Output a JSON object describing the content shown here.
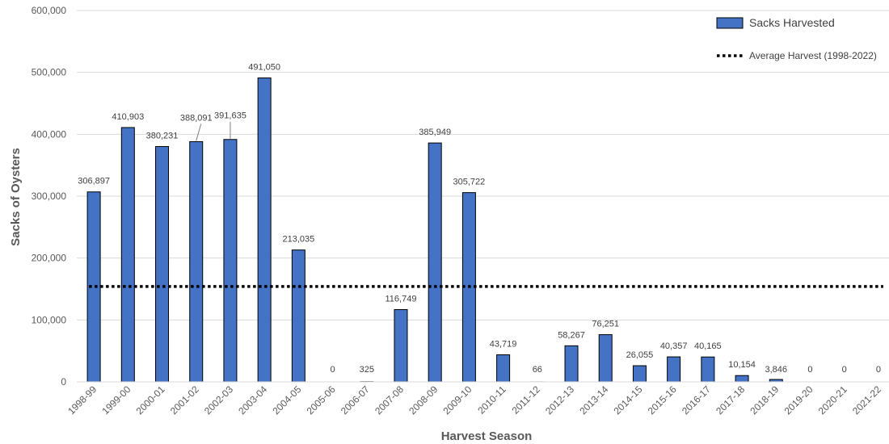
{
  "chart_data": {
    "type": "bar",
    "categories": [
      "1998-99",
      "1999-00",
      "2000-01",
      "2001-02",
      "2002-03",
      "2003-04",
      "2004-05",
      "2005-06",
      "2006-07",
      "2007-08",
      "2008-09",
      "2009-10",
      "2010-11",
      "2011-12",
      "2012-13",
      "2013-14",
      "2014-15",
      "2015-16",
      "2016-17",
      "2017-18",
      "2018-19",
      "2019-20",
      "2020-21",
      "2021-22"
    ],
    "series": [
      {
        "name": "Sacks Harvested",
        "values": [
          306897,
          410903,
          380231,
          388091,
          391635,
          491050,
          213035,
          0,
          325,
          116749,
          385949,
          305722,
          43719,
          66,
          58267,
          76251,
          26055,
          40357,
          40165,
          10154,
          3846,
          0,
          0,
          0
        ],
        "labels": [
          "306,897",
          "410,903",
          "380,231",
          "388,091",
          "391,635",
          "491,050",
          "213,035",
          "0",
          "325",
          "116,749",
          "385,949",
          "305,722",
          "43,719",
          "66",
          "58,267",
          "76,251",
          "26,055",
          "40,357",
          "40,165",
          "10,154",
          "3,846",
          "0",
          "0",
          "0"
        ]
      }
    ],
    "average": {
      "name": "Average Harvest (1998-2022)",
      "value": 154000
    },
    "xlabel": "Harvest Season",
    "ylabel": "Sacks of Oysters",
    "ylim": [
      0,
      600000
    ],
    "yticks": [
      0,
      100000,
      200000,
      300000,
      400000,
      500000,
      600000
    ],
    "ytick_labels": [
      "0",
      "100,000",
      "200,000",
      "300,000",
      "400,000",
      "500,000",
      "600,000"
    ],
    "grid": true,
    "legend_position": "top-right",
    "colors": {
      "bar_fill": "#4472C4",
      "bar_stroke": "#000000",
      "gridline": "#D9D9D9",
      "average_line": "#000000"
    }
  }
}
